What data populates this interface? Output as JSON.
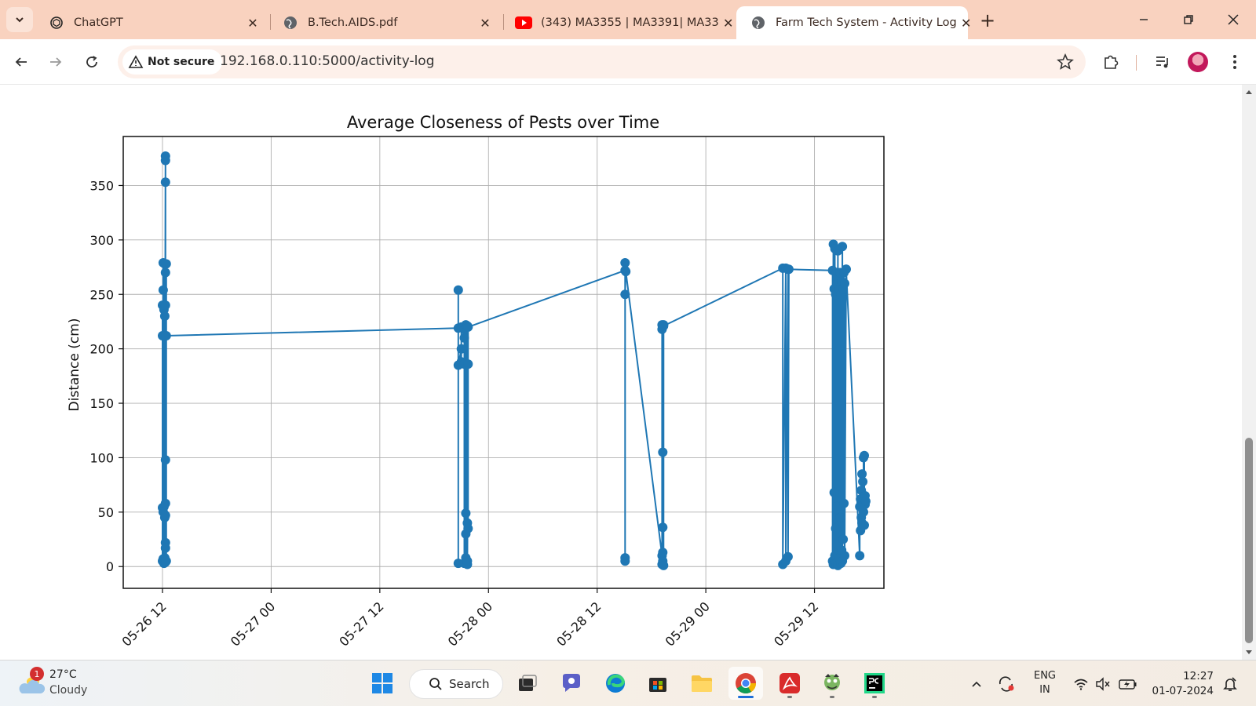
{
  "browser": {
    "tabs": [
      {
        "label": "ChatGPT",
        "icon": "chatgpt-icon",
        "active": false
      },
      {
        "label": "B.Tech.AIDS.pdf",
        "icon": "globe-icon",
        "active": false
      },
      {
        "label": "(343) MA3355 | MA3391| MA33",
        "icon": "youtube-icon",
        "active": false
      },
      {
        "label": "Farm Tech System - Activity Log",
        "icon": "globe-icon",
        "active": true
      }
    ],
    "security_label": "Not secure",
    "url": "192.168.0.110:5000/activity-log"
  },
  "chart_data": {
    "type": "line",
    "title": "Average Closeness of Pests over Time",
    "xlabel": "",
    "ylabel": "Distance (cm)",
    "x_ticks": [
      "05-26 12",
      "05-27 00",
      "05-27 12",
      "05-28 00",
      "05-28 12",
      "05-29 00",
      "05-29 12"
    ],
    "y_ticks": [
      0,
      50,
      100,
      150,
      200,
      250,
      300,
      350
    ],
    "xlim": [
      "2024-05-26 07:40",
      "2024-05-29 19:40"
    ],
    "ylim": [
      -20,
      395
    ],
    "grid": true,
    "color": "#1f77b4",
    "series": [
      {
        "name": "",
        "points": [
          [
            "2024-05-26 12:00",
            212
          ],
          [
            "2024-05-26 12:00",
            5
          ],
          [
            "2024-05-26 12:00",
            240
          ],
          [
            "2024-05-26 12:00",
            54
          ],
          [
            "2024-05-26 12:05",
            279
          ],
          [
            "2024-05-26 12:05",
            7
          ],
          [
            "2024-05-26 12:05",
            254
          ],
          [
            "2024-05-26 12:05",
            50
          ],
          [
            "2024-05-26 12:10",
            236
          ],
          [
            "2024-05-26 12:10",
            3
          ],
          [
            "2024-05-26 12:10",
            212
          ],
          [
            "2024-05-26 12:10",
            55
          ],
          [
            "2024-05-26 12:15",
            278
          ],
          [
            "2024-05-26 12:15",
            8
          ],
          [
            "2024-05-26 12:15",
            230
          ],
          [
            "2024-05-26 12:15",
            45
          ],
          [
            "2024-05-26 12:20",
            377
          ],
          [
            "2024-05-26 12:20",
            6
          ],
          [
            "2024-05-26 12:20",
            373
          ],
          [
            "2024-05-26 12:20",
            22
          ],
          [
            "2024-05-26 12:20",
            353
          ],
          [
            "2024-05-26 12:20",
            17
          ],
          [
            "2024-05-26 12:20",
            98
          ],
          [
            "2024-05-26 12:20",
            58
          ],
          [
            "2024-05-26 12:20",
            270
          ],
          [
            "2024-05-26 12:20",
            4
          ],
          [
            "2024-05-26 12:20",
            240
          ],
          [
            "2024-05-26 12:20",
            47
          ],
          [
            "2024-05-26 12:25",
            278
          ],
          [
            "2024-05-26 12:25",
            5
          ],
          [
            "2024-05-26 12:25",
            212
          ],
          [
            "2024-05-27 20:40",
            219
          ],
          [
            "2024-05-27 20:40",
            3
          ],
          [
            "2024-05-27 20:40",
            254
          ],
          [
            "2024-05-27 20:40",
            185
          ],
          [
            "2024-05-27 21:00",
            200
          ],
          [
            "2024-05-27 21:00",
            188
          ],
          [
            "2024-05-27 21:00",
            220
          ],
          [
            "2024-05-27 21:20",
            218
          ],
          [
            "2024-05-27 21:20",
            3
          ],
          [
            "2024-05-27 21:20",
            186
          ],
          [
            "2024-05-27 21:20",
            210
          ],
          [
            "2024-05-27 21:30",
            222
          ],
          [
            "2024-05-27 21:30",
            8
          ],
          [
            "2024-05-27 21:30",
            49
          ],
          [
            "2024-05-27 21:30",
            30
          ],
          [
            "2024-05-27 21:40",
            221
          ],
          [
            "2024-05-27 21:40",
            2
          ],
          [
            "2024-05-27 21:40",
            40
          ],
          [
            "2024-05-27 21:40",
            5
          ],
          [
            "2024-05-27 21:45",
            186
          ],
          [
            "2024-05-27 21:45",
            35
          ],
          [
            "2024-05-27 21:45",
            220
          ],
          [
            "2024-05-28 15:05",
            272
          ],
          [
            "2024-05-28 15:05",
            5
          ],
          [
            "2024-05-28 15:05",
            279
          ],
          [
            "2024-05-28 15:05",
            8
          ],
          [
            "2024-05-28 15:05",
            250
          ],
          [
            "2024-05-28 15:10",
            271
          ],
          [
            "2024-05-28 19:10",
            10
          ],
          [
            "2024-05-28 19:10",
            222
          ],
          [
            "2024-05-28 19:10",
            2
          ],
          [
            "2024-05-28 19:10",
            218
          ],
          [
            "2024-05-28 19:15",
            105
          ],
          [
            "2024-05-28 19:15",
            5
          ],
          [
            "2024-05-28 19:15",
            36
          ],
          [
            "2024-05-28 19:15",
            13
          ],
          [
            "2024-05-28 19:20",
            222
          ],
          [
            "2024-05-28 19:20",
            1
          ],
          [
            "2024-05-28 19:20",
            221
          ],
          [
            "2024-05-29 08:30",
            274
          ],
          [
            "2024-05-29 08:30",
            2
          ],
          [
            "2024-05-29 08:50",
            274
          ],
          [
            "2024-05-29 08:50",
            5
          ],
          [
            "2024-05-29 09:05",
            273
          ],
          [
            "2024-05-29 09:05",
            9
          ],
          [
            "2024-05-29 09:10",
            273
          ],
          [
            "2024-05-29 14:00",
            272
          ],
          [
            "2024-05-29 14:00",
            5
          ],
          [
            "2024-05-29 14:05",
            296
          ],
          [
            "2024-05-29 14:05",
            2
          ],
          [
            "2024-05-29 14:10",
            255
          ],
          [
            "2024-05-29 14:10",
            68
          ],
          [
            "2024-05-29 14:15",
            292
          ],
          [
            "2024-05-29 14:15",
            10
          ],
          [
            "2024-05-29 14:20",
            250
          ],
          [
            "2024-05-29 14:20",
            35
          ],
          [
            "2024-05-29 14:25",
            270
          ],
          [
            "2024-05-29 14:25",
            3
          ],
          [
            "2024-05-29 14:30",
            260
          ],
          [
            "2024-05-29 14:30",
            55
          ],
          [
            "2024-05-29 14:35",
            290
          ],
          [
            "2024-05-29 14:35",
            1
          ],
          [
            "2024-05-29 14:40",
            265
          ],
          [
            "2024-05-29 14:40",
            20
          ],
          [
            "2024-05-29 14:45",
            255
          ],
          [
            "2024-05-29 14:45",
            8
          ],
          [
            "2024-05-29 14:50",
            270
          ],
          [
            "2024-05-29 14:50",
            45
          ],
          [
            "2024-05-29 14:55",
            250
          ],
          [
            "2024-05-29 14:55",
            3
          ],
          [
            "2024-05-29 15:00",
            262
          ],
          [
            "2024-05-29 15:00",
            15
          ],
          [
            "2024-05-29 15:05",
            294
          ],
          [
            "2024-05-29 15:05",
            5
          ],
          [
            "2024-05-29 15:10",
            255
          ],
          [
            "2024-05-29 15:10",
            25
          ],
          [
            "2024-05-29 15:15",
            270
          ],
          [
            "2024-05-29 15:15",
            58
          ],
          [
            "2024-05-29 15:20",
            260
          ],
          [
            "2024-05-29 15:20",
            10
          ],
          [
            "2024-05-29 15:30",
            273
          ],
          [
            "2024-05-29 15:30",
            273
          ],
          [
            "2024-05-29 17:00",
            10
          ],
          [
            "2024-05-29 17:00",
            55
          ],
          [
            "2024-05-29 17:05",
            33
          ],
          [
            "2024-05-29 17:05",
            62
          ],
          [
            "2024-05-29 17:10",
            45
          ],
          [
            "2024-05-29 17:10",
            70
          ],
          [
            "2024-05-29 17:15",
            40
          ],
          [
            "2024-05-29 17:15",
            85
          ],
          [
            "2024-05-29 17:20",
            60
          ],
          [
            "2024-05-29 17:20",
            78
          ],
          [
            "2024-05-29 17:25",
            50
          ],
          [
            "2024-05-29 17:25",
            100
          ],
          [
            "2024-05-29 17:30",
            102
          ],
          [
            "2024-05-29 17:30",
            38
          ],
          [
            "2024-05-29 17:35",
            65
          ],
          [
            "2024-05-29 17:35",
            57
          ],
          [
            "2024-05-29 17:40",
            60
          ]
        ]
      }
    ]
  },
  "taskbar": {
    "weather_temp": "27°C",
    "weather_cond": "Cloudy",
    "weather_badge": "1",
    "search_label": "Search",
    "lang_top": "ENG",
    "lang_bottom": "IN",
    "time": "12:27",
    "date": "01-07-2024"
  }
}
